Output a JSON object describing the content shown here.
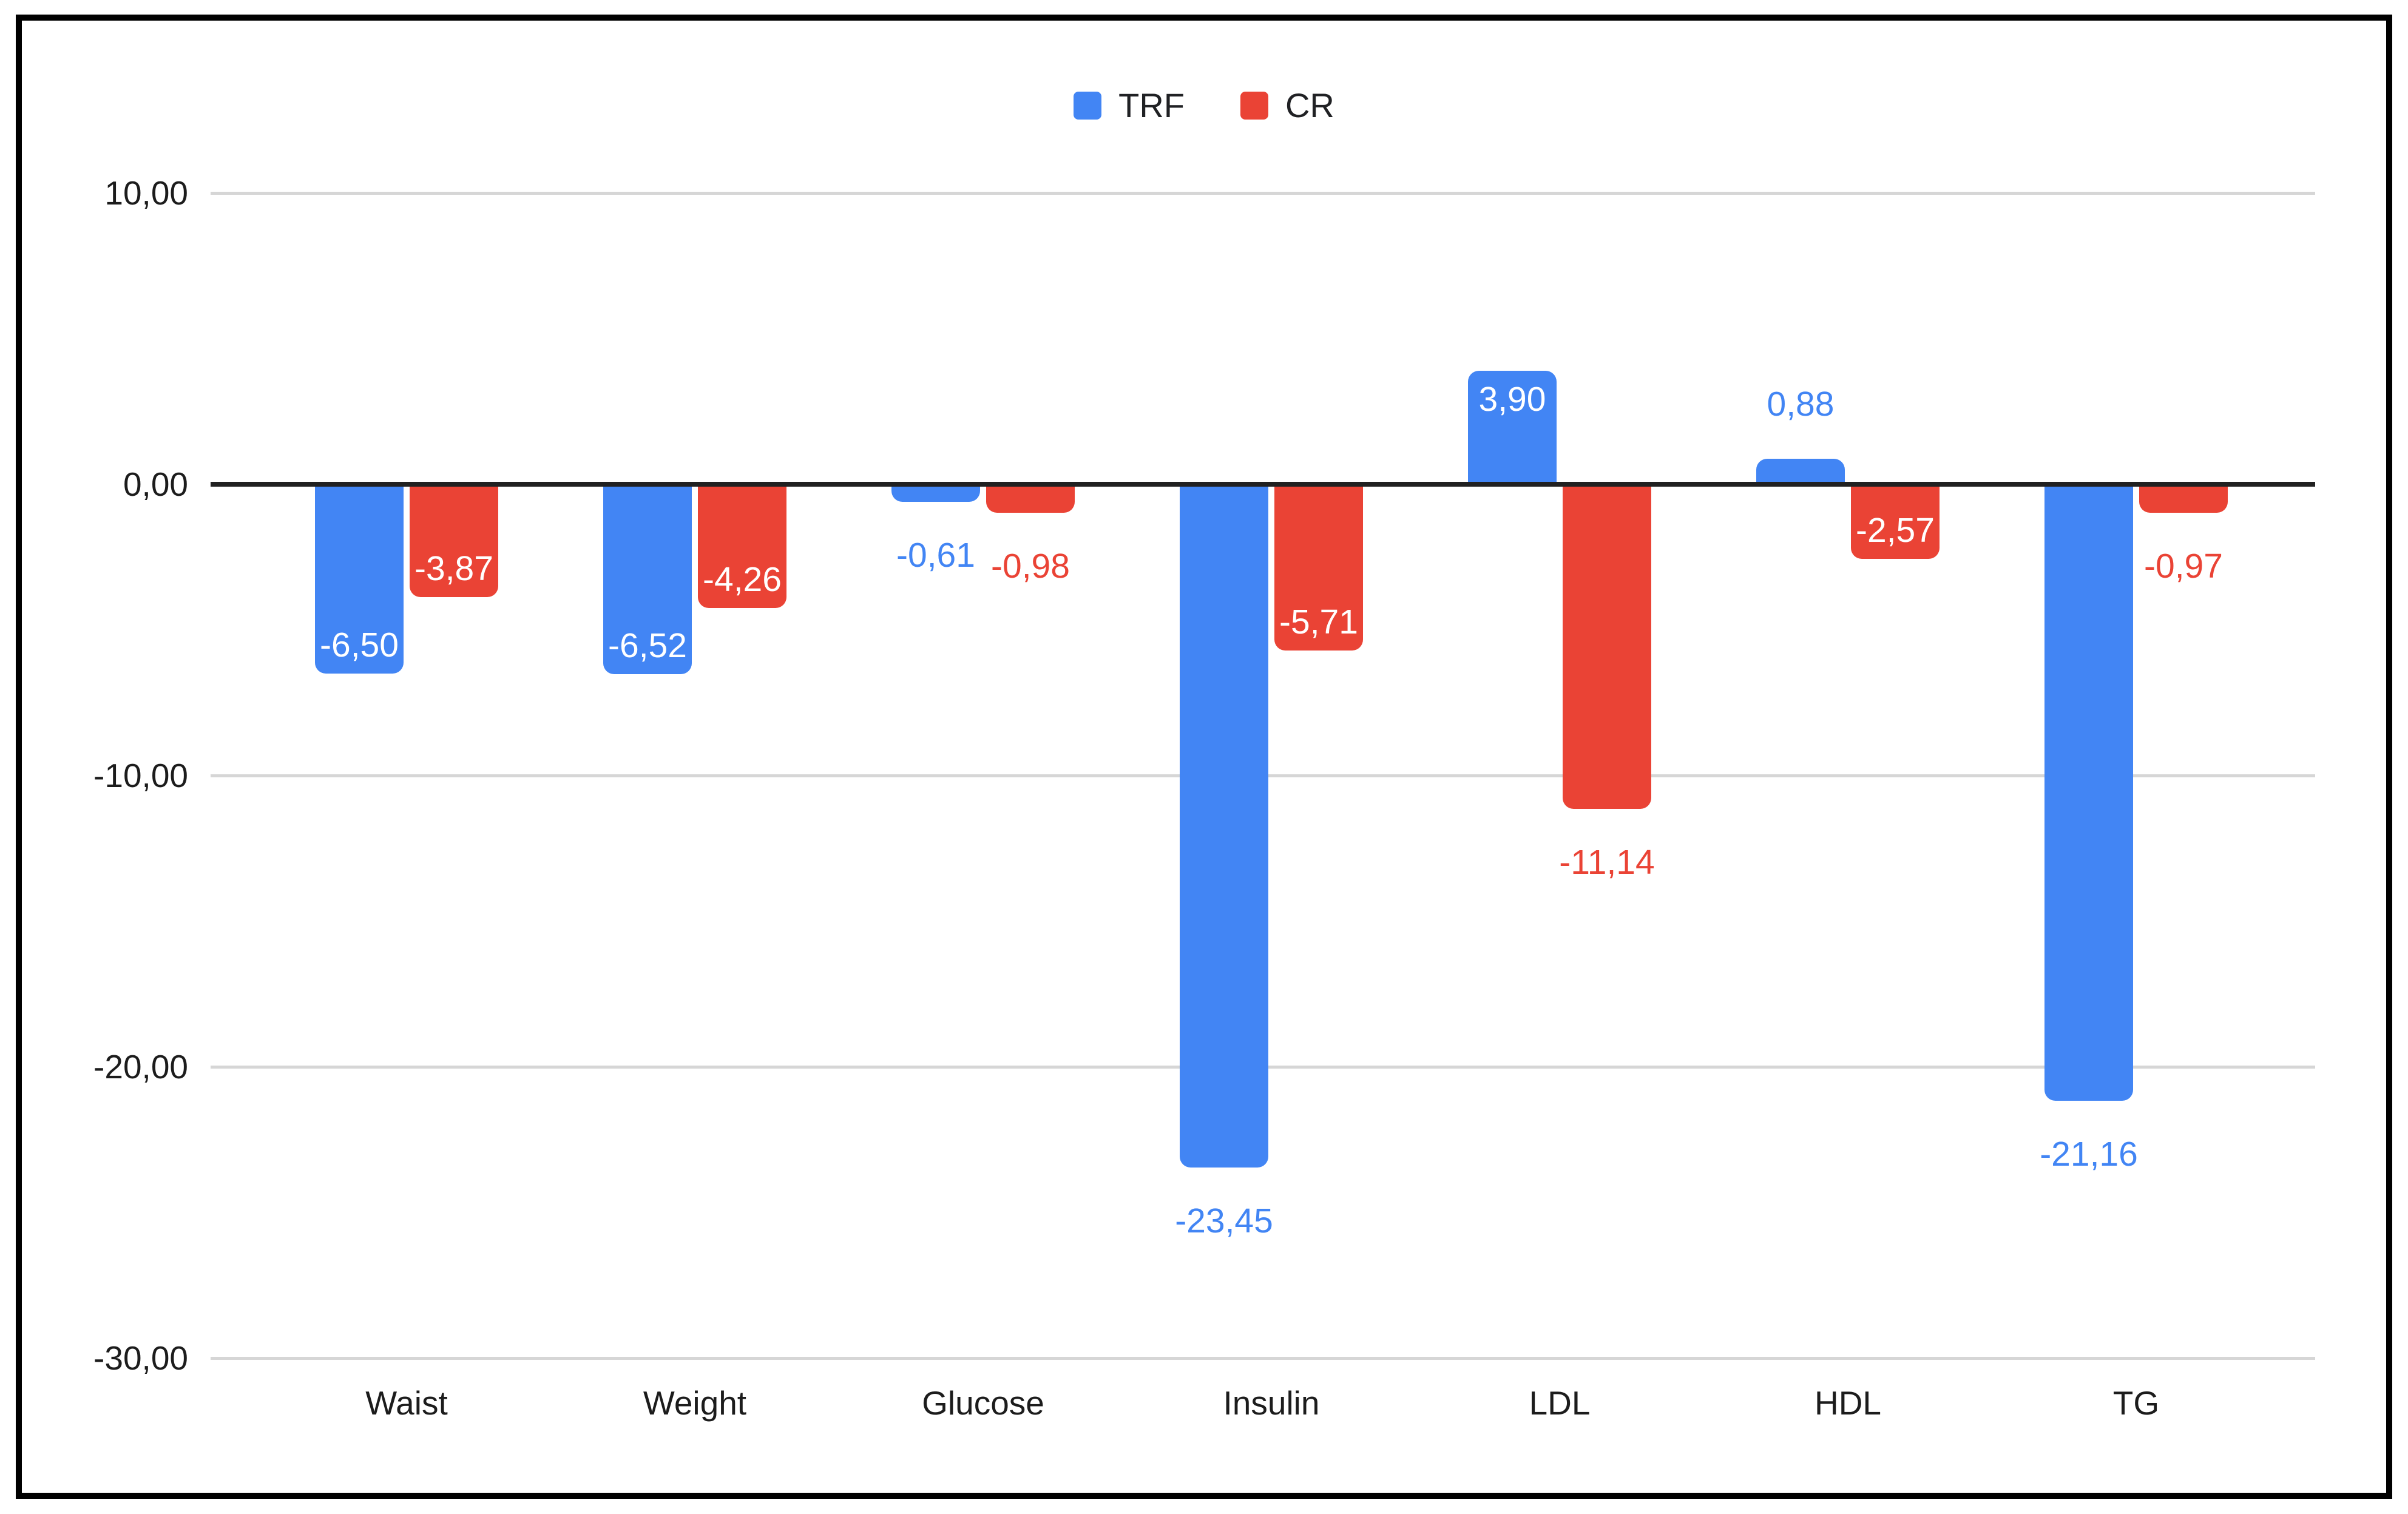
{
  "chart_data": {
    "type": "bar",
    "title": "",
    "xlabel": "",
    "ylabel": "",
    "categories": [
      "Waist",
      "Weight",
      "Glucose",
      "Insulin",
      "LDL",
      "HDL",
      "TG"
    ],
    "series": [
      {
        "name": "TRF",
        "color": "#4285F4",
        "values": [
          -6.5,
          -6.52,
          -0.61,
          -23.45,
          3.9,
          0.88,
          -21.16
        ],
        "labels": [
          "-6,50",
          "-6,52",
          "-0,61",
          "-23,45",
          "3,90",
          "0,88",
          "-21,16"
        ],
        "label_placement": [
          "inside",
          "inside",
          "outside",
          "outside",
          "inside",
          "outside",
          "outside"
        ]
      },
      {
        "name": "CR",
        "color": "#EA4335",
        "values": [
          -3.87,
          -4.26,
          -0.98,
          -5.71,
          -11.14,
          -2.57,
          -0.97
        ],
        "labels": [
          "-3,87",
          "-4,26",
          "-0,98",
          "-5,71",
          "-11,14",
          "-2,57",
          "-0,97"
        ],
        "label_placement": [
          "inside",
          "inside",
          "outside",
          "inside",
          "outside",
          "inside",
          "outside"
        ]
      }
    ],
    "ylim": [
      -30,
      10
    ],
    "yticks": [
      10,
      0,
      -10,
      -20,
      -30
    ],
    "ytick_labels": [
      "10,00",
      "0,00",
      "-10,00",
      "-20,00",
      "-30,00"
    ],
    "baseline": 0,
    "grid": true,
    "legend_position": "top-center"
  },
  "colors": {
    "background": "#ffffff",
    "frame_border": "#000000",
    "gridline": "#d6d6d6",
    "baseline": "#212121",
    "axis_text": "#1c1c1c",
    "annotation_inside": "#ffffff"
  }
}
